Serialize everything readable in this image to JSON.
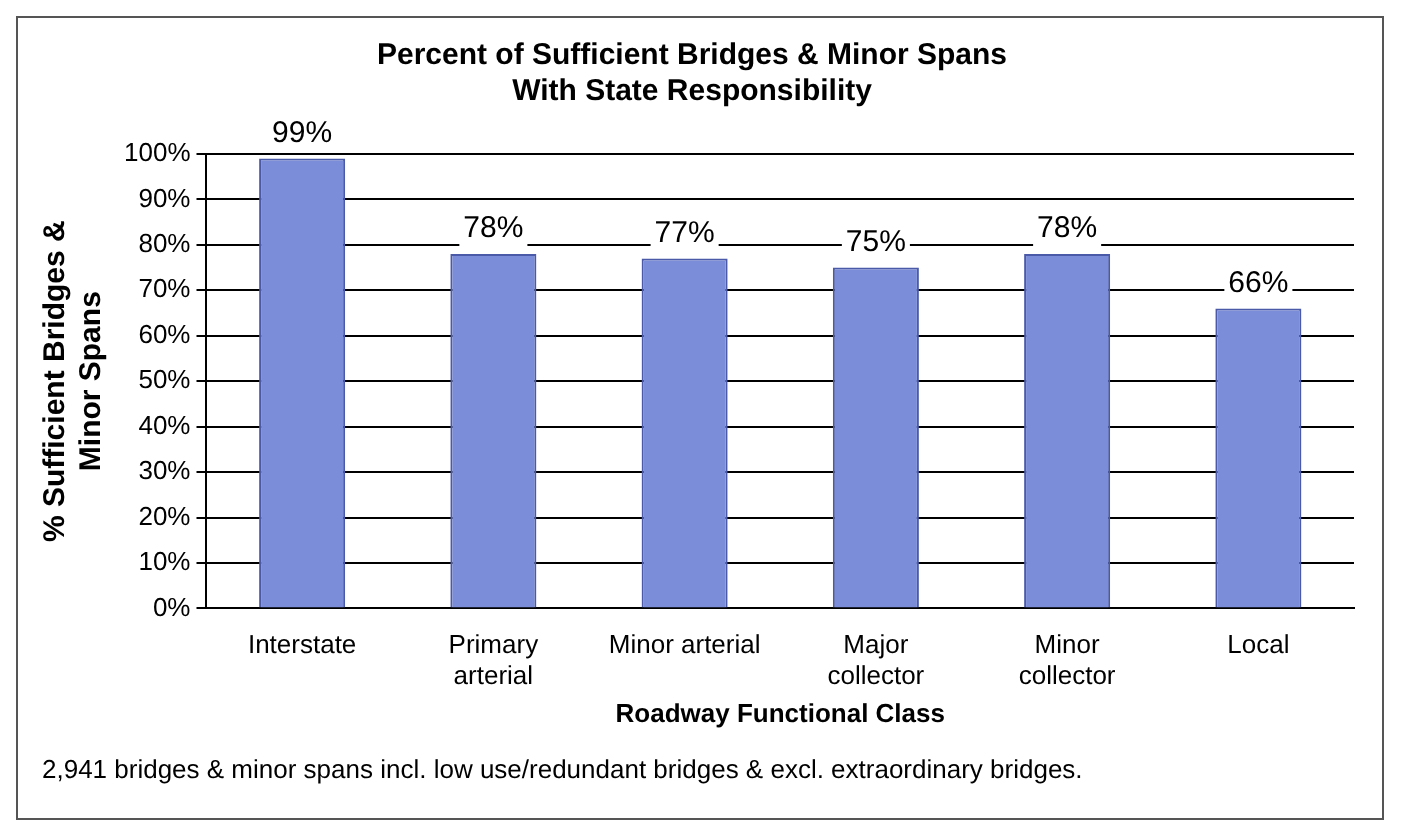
{
  "chart_data": {
    "type": "bar",
    "title": "Percent of Sufficient Bridges & Minor Spans\nWith State Responsibility",
    "xlabel": "Roadway Functional Class",
    "ylabel": "% Sufficient Bridges &\nMinor Spans",
    "categories": [
      "Interstate",
      "Primary arterial",
      "Minor arterial",
      "Major collector",
      "Minor collector",
      "Local"
    ],
    "values": [
      99,
      78,
      77,
      75,
      78,
      66
    ],
    "value_labels": [
      "99%",
      "78%",
      "77%",
      "75%",
      "78%",
      "66%"
    ],
    "color": "#7b8cd9",
    "ylim": [
      0,
      100
    ],
    "yticks": [
      {
        "value": 0,
        "label": "0%"
      },
      {
        "value": 10,
        "label": "10%"
      },
      {
        "value": 20,
        "label": "20%"
      },
      {
        "value": 30,
        "label": "30%"
      },
      {
        "value": 40,
        "label": "40%"
      },
      {
        "value": 50,
        "label": "50%"
      },
      {
        "value": 60,
        "label": "60%"
      },
      {
        "value": 70,
        "label": "70%"
      },
      {
        "value": 80,
        "label": "80%"
      },
      {
        "value": 90,
        "label": "90%"
      },
      {
        "value": 100,
        "label": "100%"
      }
    ],
    "grid": "y",
    "legend": false,
    "annotations": [
      "2,941 bridges & minor spans incl. low use/redundant bridges & excl. extraordinary bridges."
    ]
  }
}
